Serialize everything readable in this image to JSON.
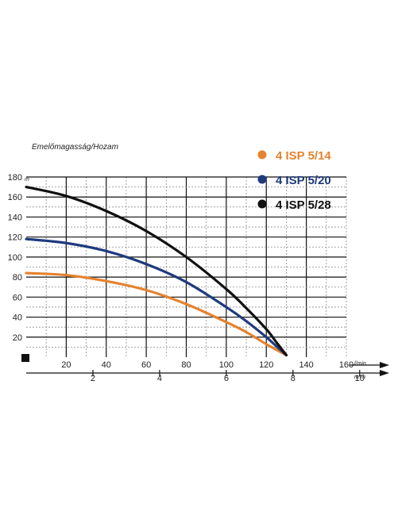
{
  "chart_data": {
    "type": "line",
    "title": "",
    "ylabel": "Emelőmagasság/Hozam",
    "yunit": "m",
    "xunit_primary": "l/min",
    "xunit_secondary": "m³/h",
    "xlim": [
      0,
      160
    ],
    "ylim": [
      0,
      180
    ],
    "yticks": [
      20,
      40,
      60,
      80,
      100,
      120,
      140,
      160,
      180
    ],
    "xticks_primary": [
      20,
      40,
      60,
      80,
      100,
      120,
      140,
      160
    ],
    "xticks_secondary": [
      2,
      4,
      6,
      8,
      10
    ],
    "xticks_secondary_labels": [
      "2",
      "4",
      "6",
      "8",
      "10"
    ],
    "grid": true,
    "legend": "top-right",
    "series": [
      {
        "name": "4 ISP 5/14",
        "color": "#e5832f",
        "x": [
          0,
          20,
          40,
          60,
          80,
          100,
          110,
          120,
          130
        ],
        "y": [
          84,
          82,
          76,
          67,
          53,
          35,
          25,
          13,
          2
        ]
      },
      {
        "name": "4 ISP 5/20",
        "color": "#1f3b7e",
        "x": [
          0,
          20,
          40,
          60,
          80,
          100,
          110,
          120,
          125,
          130
        ],
        "y": [
          118,
          114,
          106,
          93,
          75,
          50,
          36,
          20,
          11,
          2
        ]
      },
      {
        "name": "4 ISP 5/28",
        "color": "#111111",
        "x": [
          0,
          20,
          40,
          60,
          80,
          100,
          110,
          120,
          125,
          130
        ],
        "y": [
          170,
          161,
          146,
          126,
          100,
          68,
          49,
          28,
          15,
          2
        ]
      }
    ]
  }
}
